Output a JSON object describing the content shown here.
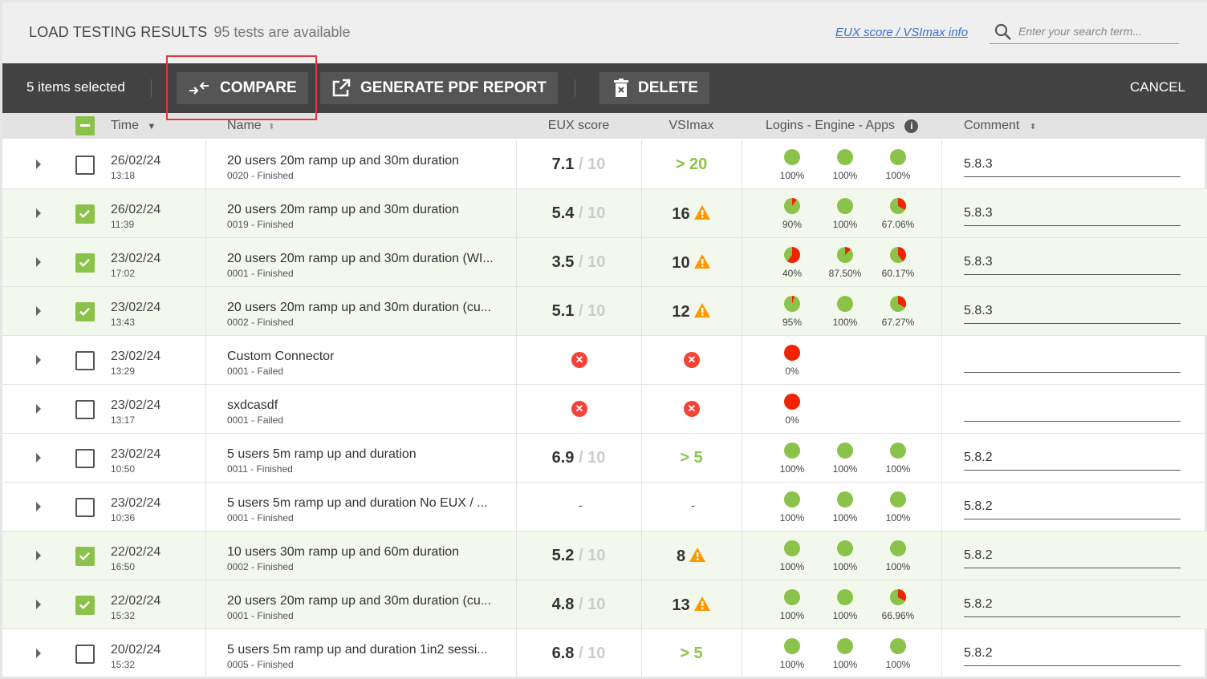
{
  "header": {
    "title": "LOAD TESTING RESULTS",
    "count": "95 tests are available",
    "info_link": "EUX score / VSImax info",
    "search_placeholder": "Enter your search term..."
  },
  "toolbar": {
    "selected": "5 items selected",
    "compare": "COMPARE",
    "pdf": "GENERATE PDF REPORT",
    "delete": "DELETE",
    "cancel": "CANCEL"
  },
  "columns": {
    "time": "Time",
    "name": "Name",
    "eux": "EUX score",
    "vsimax": "VSImax",
    "logins": "Logins - Engine - Apps",
    "comment": "Comment"
  },
  "colors": {
    "accent_green": "#8bc34a",
    "fail_red": "#f02400",
    "warning": "#ff9800",
    "toolbar": "#424242"
  },
  "rows": [
    {
      "selected": false,
      "date": "26/02/24",
      "time": "13:18",
      "name": "20 users 20m ramp up and 30m duration",
      "status": "0020 - Finished",
      "eux": "7.1",
      "eux_max": "/ 10",
      "vsimax": "> 20",
      "vsimax_ok": true,
      "pies": [
        [
          "100%",
          100
        ],
        [
          "100%",
          100
        ],
        [
          "100%",
          100
        ]
      ],
      "comment": "5.8.3"
    },
    {
      "selected": true,
      "date": "26/02/24",
      "time": "11:39",
      "name": "20 users 20m ramp up and 30m duration",
      "status": "0019 - Finished",
      "eux": "5.4",
      "eux_max": "/ 10",
      "vsimax": "16",
      "vsimax_warn": true,
      "pies": [
        [
          "90%",
          90
        ],
        [
          "100%",
          100
        ],
        [
          "67.06%",
          67.06
        ]
      ],
      "comment": "5.8.3"
    },
    {
      "selected": true,
      "date": "23/02/24",
      "time": "17:02",
      "name": "20 users 20m ramp up and 30m duration (WI...",
      "status": "0001 - Finished",
      "eux": "3.5",
      "eux_max": "/ 10",
      "vsimax": "10",
      "vsimax_warn": true,
      "pies": [
        [
          "40%",
          40
        ],
        [
          "87.50%",
          87.5
        ],
        [
          "60.17%",
          60.17
        ]
      ],
      "comment": "5.8.3"
    },
    {
      "selected": true,
      "date": "23/02/24",
      "time": "13:43",
      "name": "20 users 20m ramp up and 30m duration (cu...",
      "status": "0002 - Finished",
      "eux": "5.1",
      "eux_max": "/ 10",
      "vsimax": "12",
      "vsimax_warn": true,
      "pies": [
        [
          "95%",
          95
        ],
        [
          "100%",
          100
        ],
        [
          "67.27%",
          67.27
        ]
      ],
      "comment": "5.8.3"
    },
    {
      "selected": false,
      "date": "23/02/24",
      "time": "13:29",
      "name": "Custom Connector",
      "status": "0001 - Failed",
      "failed": true,
      "pies": [
        [
          "0%",
          0
        ]
      ],
      "comment": ""
    },
    {
      "selected": false,
      "date": "23/02/24",
      "time": "13:17",
      "name": "sxdcasdf",
      "status": "0001 - Failed",
      "failed": true,
      "pies": [
        [
          "0%",
          0
        ]
      ],
      "comment": ""
    },
    {
      "selected": false,
      "date": "23/02/24",
      "time": "10:50",
      "name": "5 users 5m ramp up and duration",
      "status": "0011 - Finished",
      "eux": "6.9",
      "eux_max": "/ 10",
      "vsimax": "> 5",
      "vsimax_ok": true,
      "pies": [
        [
          "100%",
          100
        ],
        [
          "100%",
          100
        ],
        [
          "100%",
          100
        ]
      ],
      "comment": "5.8.2"
    },
    {
      "selected": false,
      "date": "23/02/24",
      "time": "10:36",
      "name": "5 users 5m ramp up and duration No EUX / ...",
      "status": "0001 - Finished",
      "eux_dash": "-",
      "vsimax_dash": "-",
      "pies": [
        [
          "100%",
          100
        ],
        [
          "100%",
          100
        ],
        [
          "100%",
          100
        ]
      ],
      "comment": "5.8.2"
    },
    {
      "selected": true,
      "date": "22/02/24",
      "time": "16:50",
      "name": "10 users 30m ramp up and 60m duration",
      "status": "0002 - Finished",
      "eux": "5.2",
      "eux_max": "/ 10",
      "vsimax": "8",
      "vsimax_warn": true,
      "pies": [
        [
          "100%",
          100
        ],
        [
          "100%",
          100
        ],
        [
          "100%",
          100
        ]
      ],
      "comment": "5.8.2"
    },
    {
      "selected": true,
      "date": "22/02/24",
      "time": "15:32",
      "name": "20 users 20m ramp up and 30m duration (cu...",
      "status": "0001 - Finished",
      "eux": "4.8",
      "eux_max": "/ 10",
      "vsimax": "13",
      "vsimax_warn": true,
      "pies": [
        [
          "100%",
          100
        ],
        [
          "100%",
          100
        ],
        [
          "66.96%",
          66.96
        ]
      ],
      "comment": "5.8.2"
    },
    {
      "selected": false,
      "date": "20/02/24",
      "time": "15:32",
      "name": "5 users 5m ramp up and duration 1in2 sessi...",
      "status": "0005 - Finished",
      "eux": "6.8",
      "eux_max": "/ 10",
      "vsimax": "> 5",
      "vsimax_ok": true,
      "pies": [
        [
          "100%",
          100
        ],
        [
          "100%",
          100
        ],
        [
          "100%",
          100
        ]
      ],
      "comment": "5.8.2"
    }
  ]
}
